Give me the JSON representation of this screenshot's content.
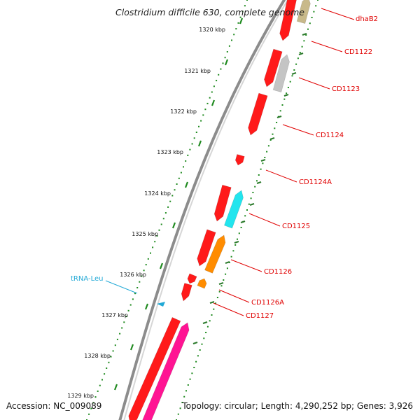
{
  "title": "Clostridium difficile 630, complete genome",
  "footer": {
    "accession": "Accession: NC_009089",
    "info": "Topology: circular; Length: 4,290,252 bp; Genes: 3,926"
  },
  "scale_labels": [
    "1320 kbp",
    "1321 kbp",
    "1322 kbp",
    "1323 kbp",
    "1324 kbp",
    "1325 kbp",
    "1326 kbp",
    "1327 kbp",
    "1328 kbp",
    "1329 kbp"
  ],
  "colors": {
    "backbone": "#8c8c8c",
    "forward_cds": "#ff1a1a",
    "gene_label": "#e00000",
    "trna_label": "#22a9d6",
    "dotted_ring": "#1f8a1f",
    "gc_tick": "#2c7a2c"
  },
  "genes": [
    {
      "label": "dhaB2",
      "color": "#c8b98a",
      "strand": "reverse"
    },
    {
      "label": "CD1122",
      "color": "#ff1a1a",
      "strand": "forward"
    },
    {
      "label": "CD1123",
      "color": "#c4c4c4",
      "strand": "reverse"
    },
    {
      "label": "CD1124",
      "color": "#ff1a1a",
      "strand": "forward"
    },
    {
      "label": "CD1124A",
      "color": "#ff1a1a",
      "strand": "forward"
    },
    {
      "label": "CD1125",
      "color": "#22e5ee",
      "strand": "reverse"
    },
    {
      "label": "CD1126",
      "color": "#ff8c00",
      "strand": "reverse"
    },
    {
      "label": "CD1126A",
      "color": "#ff8c00",
      "strand": "reverse"
    },
    {
      "label": "CD1127",
      "color": "#ff1a1a",
      "strand": "forward"
    }
  ],
  "trna": {
    "label": "tRNA-Leu",
    "color": "#22a9d6"
  }
}
